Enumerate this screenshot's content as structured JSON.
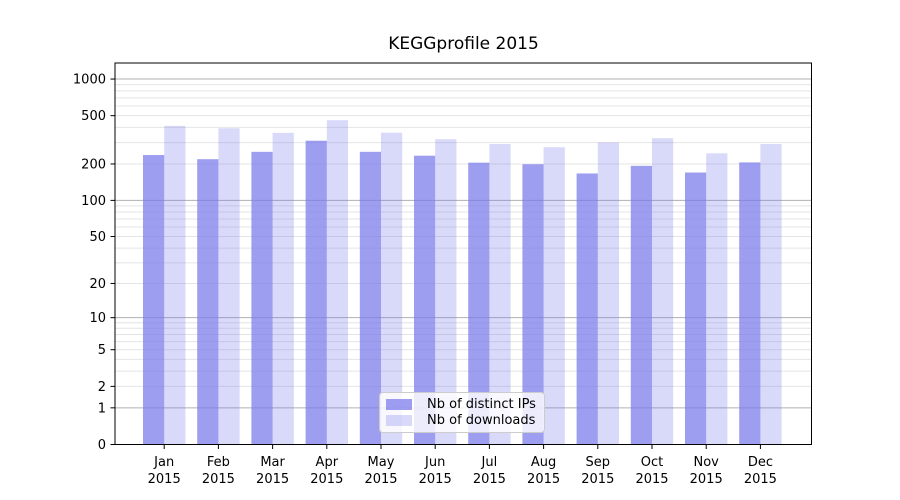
{
  "title": "KEGGprofile 2015",
  "chart_data": {
    "type": "bar",
    "title": "KEGGprofile 2015",
    "categories": [
      "Jan",
      "Feb",
      "Mar",
      "Apr",
      "May",
      "Jun",
      "Jul",
      "Aug",
      "Sep",
      "Oct",
      "Nov",
      "Dec"
    ],
    "category_year": "2015",
    "series": [
      {
        "name": "Nb of distinct IPs",
        "color": "#7878eb",
        "alpha": 0.72,
        "values": [
          237,
          219,
          252,
          311,
          252,
          234,
          205,
          199,
          167,
          193,
          170,
          206
        ]
      },
      {
        "name": "Nb of downloads",
        "color": "#7878eb",
        "alpha": 0.28,
        "values": [
          412,
          394,
          361,
          459,
          362,
          320,
          292,
          275,
          301,
          326,
          245,
          292
        ]
      }
    ],
    "y_scale": "log1p",
    "y_ticks": [
      0,
      1,
      2,
      5,
      10,
      20,
      50,
      100,
      200,
      500,
      1000
    ],
    "y_max": 1355,
    "xlabel": "",
    "ylabel": "",
    "grid": {
      "major": [
        1,
        10,
        100,
        1000
      ],
      "minor_per_decade": [
        2,
        3,
        4,
        5,
        6,
        7,
        8,
        9
      ],
      "minor_decades": [
        1,
        10,
        100
      ],
      "major_color": "#b0b0b0",
      "minor_color": "#e4e4e4"
    },
    "legend_position": "bottom-center",
    "axis_color": "#000000",
    "text_color": "#000000",
    "background_color": "#ffffff"
  },
  "legend": {
    "entries": [
      "Nb of distinct IPs",
      "Nb of downloads"
    ]
  }
}
